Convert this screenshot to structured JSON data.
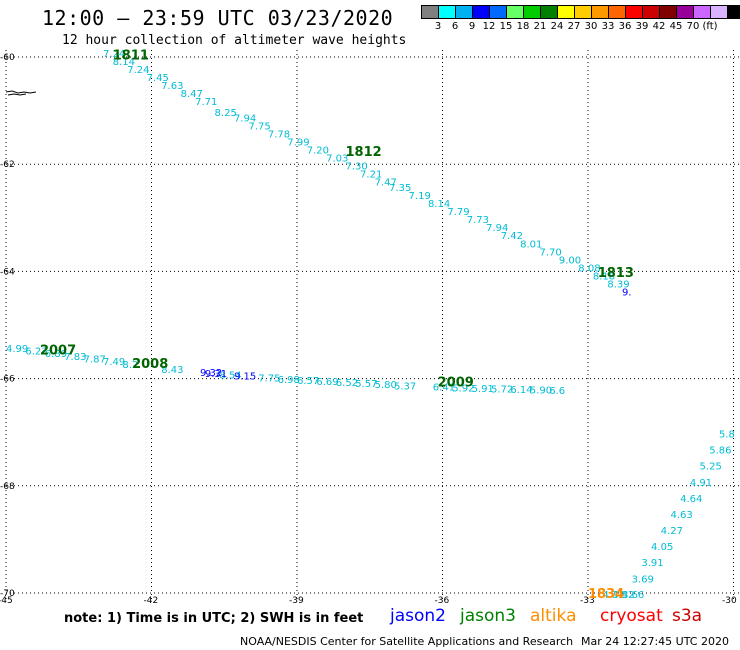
{
  "header": {
    "title": "12:00 – 23:59 UTC 03/23/2020",
    "subtitle": "12 hour collection of altimeter wave heights"
  },
  "legend": {
    "unit": "(ft)",
    "colors": [
      "#808080",
      "#00ffff",
      "#00b0f0",
      "#0000ff",
      "#006aff",
      "#66ff66",
      "#00cc00",
      "#008000",
      "#ffff00",
      "#ffcc00",
      "#ff9900",
      "#ff6600",
      "#ff0000",
      "#cc0000",
      "#800000",
      "#990099",
      "#cc66ff",
      "#d9b3ff",
      "#000000"
    ],
    "labels": [
      "3",
      "6",
      "9",
      "12",
      "15",
      "18",
      "21",
      "24",
      "27",
      "30",
      "33",
      "36",
      "39",
      "42",
      "45",
      "70"
    ]
  },
  "map": {
    "lon_ticks": [
      "-45",
      "-42",
      "-39",
      "-36",
      "-33",
      "-30"
    ],
    "lat_ticks": [
      "-60",
      "-62",
      "-64",
      "-66",
      "-68",
      "-70"
    ],
    "tracks": [
      {
        "color": "#00bcd4",
        "points": [
          {
            "t": "7.24",
            "lon": -43.0,
            "lat": -60.0
          },
          {
            "t": "8.14",
            "lon": -42.8,
            "lat": -60.15
          },
          {
            "t": "7.24",
            "lon": -42.5,
            "lat": -60.3
          },
          {
            "t": "7.45",
            "lon": -42.1,
            "lat": -60.45
          },
          {
            "t": "7.63",
            "lon": -41.8,
            "lat": -60.6
          },
          {
            "t": "8.47",
            "lon": -41.4,
            "lat": -60.75
          },
          {
            "t": "7.71",
            "lon": -41.1,
            "lat": -60.9
          },
          {
            "t": "8.25",
            "lon": -40.7,
            "lat": -61.1
          },
          {
            "t": "7.94",
            "lon": -40.3,
            "lat": -61.2
          },
          {
            "t": "7.75",
            "lon": -40.0,
            "lat": -61.35
          },
          {
            "t": "7.78",
            "lon": -39.6,
            "lat": -61.5
          },
          {
            "t": "7.99",
            "lon": -39.2,
            "lat": -61.65
          },
          {
            "t": "7.20",
            "lon": -38.8,
            "lat": -61.8
          },
          {
            "t": "7.03",
            "lon": -38.4,
            "lat": -61.95
          },
          {
            "t": "7.30",
            "lon": -38.0,
            "lat": -62.1
          },
          {
            "t": "7.21",
            "lon": -37.7,
            "lat": -62.25
          },
          {
            "t": "7.47",
            "lon": -37.4,
            "lat": -62.4
          },
          {
            "t": "7.35",
            "lon": -37.1,
            "lat": -62.5
          },
          {
            "t": "7.19",
            "lon": -36.7,
            "lat": -62.65
          },
          {
            "t": "8.14",
            "lon": -36.3,
            "lat": -62.8
          },
          {
            "t": "7.79",
            "lon": -35.9,
            "lat": -62.95
          },
          {
            "t": "7.73",
            "lon": -35.5,
            "lat": -63.1
          },
          {
            "t": "7.94",
            "lon": -35.1,
            "lat": -63.25
          },
          {
            "t": "7.42",
            "lon": -34.8,
            "lat": -63.4
          },
          {
            "t": "8.01",
            "lon": -34.4,
            "lat": -63.55
          },
          {
            "t": "7.70",
            "lon": -34.0,
            "lat": -63.7
          },
          {
            "t": "9.00",
            "lon": -33.6,
            "lat": -63.85
          },
          {
            "t": "8.08",
            "lon": -33.2,
            "lat": -64.0
          },
          {
            "t": "8.18",
            "lon": -32.9,
            "lat": -64.15
          },
          {
            "t": "8.39",
            "lon": -32.6,
            "lat": -64.3
          }
        ]
      },
      {
        "color": "#00bcd4",
        "points": [
          {
            "t": "4.99",
            "lon": -45.0,
            "lat": -65.5
          },
          {
            "t": "6.23",
            "lon": -44.6,
            "lat": -65.55
          },
          {
            "t": "6.89",
            "lon": -44.2,
            "lat": -65.6
          },
          {
            "t": "7.83",
            "lon": -43.8,
            "lat": -65.65
          },
          {
            "t": "7.87",
            "lon": -43.4,
            "lat": -65.7
          },
          {
            "t": "7.49",
            "lon": -43.0,
            "lat": -65.75
          },
          {
            "t": "8.2",
            "lon": -42.6,
            "lat": -65.8
          },
          {
            "t": "8.43",
            "lon": -41.8,
            "lat": -65.9
          },
          {
            "t": "8.54",
            "lon": -40.6,
            "lat": -66.0
          },
          {
            "t": "7.75",
            "lon": -39.8,
            "lat": -66.05
          },
          {
            "t": "6.98",
            "lon": -39.4,
            "lat": -66.08
          },
          {
            "t": "6.57",
            "lon": -39.0,
            "lat": -66.1
          },
          {
            "t": "6.69",
            "lon": -38.6,
            "lat": -66.12
          },
          {
            "t": "6.52",
            "lon": -38.2,
            "lat": -66.14
          },
          {
            "t": "5.57",
            "lon": -37.8,
            "lat": -66.16
          },
          {
            "t": "5.80",
            "lon": -37.4,
            "lat": -66.18
          },
          {
            "t": "5.37",
            "lon": -37.0,
            "lat": -66.2
          },
          {
            "t": "6.41",
            "lon": -36.2,
            "lat": -66.22
          },
          {
            "t": "5.92",
            "lon": -35.8,
            "lat": -66.24
          },
          {
            "t": "5.91",
            "lon": -35.4,
            "lat": -66.25
          },
          {
            "t": "5.72",
            "lon": -35.0,
            "lat": -66.26
          },
          {
            "t": "6.14",
            "lon": -34.6,
            "lat": -66.27
          },
          {
            "t": "5.90",
            "lon": -34.2,
            "lat": -66.28
          },
          {
            "t": "6.6",
            "lon": -33.8,
            "lat": -66.29
          }
        ]
      },
      {
        "color": "#00bcd4",
        "points": [
          {
            "t": "5.8",
            "lon": -30.3,
            "lat": -67.1
          },
          {
            "t": "5.86",
            "lon": -30.5,
            "lat": -67.4
          },
          {
            "t": "5.25",
            "lon": -30.7,
            "lat": -67.7
          },
          {
            "t": "4.91",
            "lon": -30.9,
            "lat": -68.0
          },
          {
            "t": "4.64",
            "lon": -31.1,
            "lat": -68.3
          },
          {
            "t": "4.63",
            "lon": -31.3,
            "lat": -68.6
          },
          {
            "t": "4.27",
            "lon": -31.5,
            "lat": -68.9
          },
          {
            "t": "4.05",
            "lon": -31.7,
            "lat": -69.2
          },
          {
            "t": "3.91",
            "lon": -31.9,
            "lat": -69.5
          },
          {
            "t": "3.69",
            "lon": -32.1,
            "lat": -69.8
          },
          {
            "t": "3.66",
            "lon": -32.3,
            "lat": -70.1
          },
          {
            "t": "3.42",
            "lon": -32.5,
            "lat": -70.4
          },
          {
            "t": "4.42",
            "lon": -32.7,
            "lat": -70.8
          }
        ]
      },
      {
        "color": "#0000ff",
        "points": [
          {
            "t": "9.32",
            "lon": -41.0,
            "lat": -65.95
          },
          {
            "t": "9.31",
            "lon": -40.9,
            "lat": -65.97
          },
          {
            "t": "9.15",
            "lon": -40.3,
            "lat": -66.02
          },
          {
            "t": "9.",
            "lon": -32.3,
            "lat": -64.45
          }
        ]
      },
      {
        "color": "#006400",
        "points": [
          {
            "t": "1811",
            "lon": -42.8,
            "lat": -60.05
          },
          {
            "t": "1812",
            "lon": -38.0,
            "lat": -61.85
          },
          {
            "t": "1813",
            "lon": -32.8,
            "lat": -64.1
          },
          {
            "t": "2007",
            "lon": -44.3,
            "lat": -65.55
          },
          {
            "t": "2008",
            "lon": -42.4,
            "lat": -65.8
          },
          {
            "t": "2009",
            "lon": -36.1,
            "lat": -66.15
          }
        ]
      },
      {
        "color": "#ff8c00",
        "points": [
          {
            "t": "1834",
            "lon": -33.0,
            "lat": -70.25
          }
        ]
      }
    ]
  },
  "footer": {
    "note": "note: 1) Time is in UTC; 2) SWH is in feet",
    "satellites": [
      {
        "name": "jason2",
        "color": "#0000ff"
      },
      {
        "name": "jason3",
        "color": "#008000"
      },
      {
        "name": "altika",
        "color": "#ff8c00"
      },
      {
        "name": "cryosat",
        "color": "#ff0000"
      },
      {
        "name": "s3a",
        "color": "#cc0000"
      }
    ],
    "credit": "NOAA/NESDIS Center for Satellite Applications and Research",
    "timestamp": "Mar 24 12:27:45 UTC 2020"
  }
}
